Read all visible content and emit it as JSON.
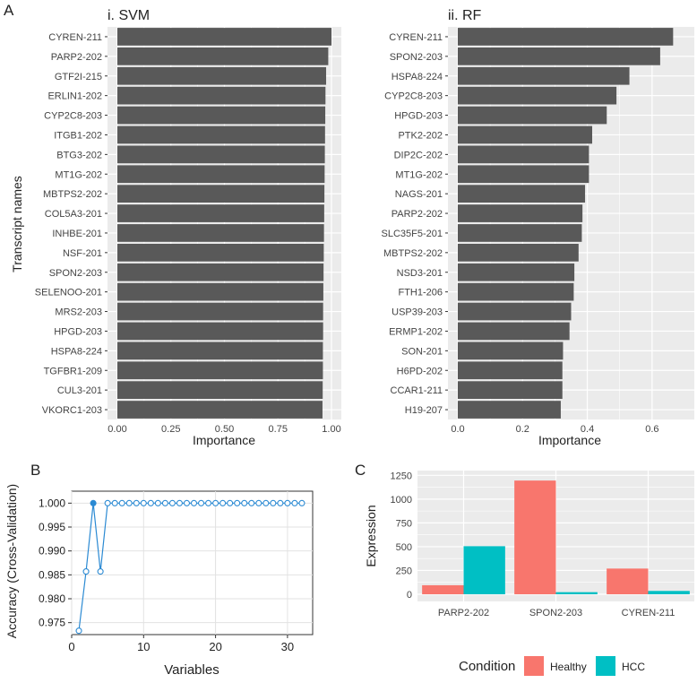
{
  "panel_labels": {
    "a": "A",
    "b": "B",
    "c": "C"
  },
  "colors": {
    "bar": "#595959",
    "panel_bg": "#ebebeb",
    "grid": "#ffffff",
    "point": "#2b8ad3",
    "healthy": "#f8766d",
    "hcc": "#00bfc4"
  },
  "chart_data": [
    {
      "id": "svm",
      "type": "bar",
      "orientation": "horizontal",
      "title": "i. SVM",
      "xlabel": "Importance",
      "ylabel": "Transcript names",
      "xlim": [
        0,
        1.0
      ],
      "xticks": [
        0.0,
        0.25,
        0.5,
        0.75,
        1.0
      ],
      "xtick_labels": [
        "0.00",
        "0.25",
        "0.50",
        "0.75",
        "1.00"
      ],
      "categories": [
        "CYREN-211",
        "PARP2-202",
        "GTF2I-215",
        "ERLIN1-202",
        "CYP2C8-203",
        "ITGB1-202",
        "BTG3-202",
        "MT1G-202",
        "MBTPS2-202",
        "COL5A3-201",
        "INHBE-201",
        "NSF-201",
        "SPON2-203",
        "SELENOO-201",
        "MRS2-203",
        "HPGD-203",
        "HSPA8-224",
        "TGFBR1-209",
        "CUL3-201",
        "VKORC1-203"
      ],
      "values": [
        1.0,
        0.985,
        0.975,
        0.972,
        0.971,
        0.97,
        0.969,
        0.968,
        0.967,
        0.966,
        0.965,
        0.964,
        0.963,
        0.962,
        0.961,
        0.961,
        0.96,
        0.96,
        0.959,
        0.958
      ]
    },
    {
      "id": "rf",
      "type": "bar",
      "orientation": "horizontal",
      "title": "ii. RF",
      "xlabel": "Importance",
      "xlim": [
        0,
        0.7
      ],
      "xticks": [
        0.0,
        0.2,
        0.4,
        0.6
      ],
      "xtick_labels": [
        "0.0",
        "0.2",
        "0.4",
        "0.6"
      ],
      "categories": [
        "CYREN-211",
        "SPON2-203",
        "HSPA8-224",
        "CYP2C8-203",
        "HPGD-203",
        "PTK2-202",
        "DIP2C-202",
        "MT1G-202",
        "NAGS-201",
        "PARP2-202",
        "SLC35F5-201",
        "MBTPS2-202",
        "NSD3-201",
        "FTH1-206",
        "USP39-203",
        "ERMP1-202",
        "SON-201",
        "H6PD-202",
        "CCAR1-211",
        "H19-207"
      ],
      "values": [
        0.665,
        0.625,
        0.53,
        0.49,
        0.46,
        0.415,
        0.405,
        0.405,
        0.393,
        0.385,
        0.383,
        0.373,
        0.36,
        0.358,
        0.35,
        0.345,
        0.325,
        0.323,
        0.323,
        0.318
      ]
    },
    {
      "id": "cv",
      "type": "line",
      "xlabel": "Variables",
      "ylabel": "Accuracy (Cross-Validation)",
      "xlim": [
        0,
        33.5
      ],
      "ylim": [
        0.9725,
        1.0025
      ],
      "xticks": [
        0,
        10,
        20,
        30
      ],
      "yticks": [
        0.975,
        0.98,
        0.985,
        0.99,
        0.995,
        1.0
      ],
      "ytick_labels": [
        "0.975",
        "0.980",
        "0.985",
        "0.990",
        "0.995",
        "1.000"
      ],
      "x": [
        1,
        2,
        3,
        4,
        5,
        6,
        7,
        8,
        9,
        10,
        11,
        12,
        13,
        14,
        15,
        16,
        17,
        18,
        19,
        20,
        21,
        22,
        23,
        24,
        25,
        26,
        27,
        28,
        29,
        30,
        31,
        32
      ],
      "y": [
        0.9733,
        0.9857,
        1.0,
        0.9857,
        1.0,
        1.0,
        1.0,
        1.0,
        1.0,
        1.0,
        1.0,
        1.0,
        1.0,
        1.0,
        1.0,
        1.0,
        1.0,
        1.0,
        1.0,
        1.0,
        1.0,
        1.0,
        1.0,
        1.0,
        1.0,
        1.0,
        1.0,
        1.0,
        1.0,
        1.0,
        1.0,
        1.0
      ],
      "selected_x": 3
    },
    {
      "id": "expr",
      "type": "bar",
      "ylabel": "Expression",
      "ylim": [
        0,
        1300
      ],
      "yticks": [
        0,
        250,
        500,
        750,
        1000,
        1250
      ],
      "categories": [
        "PARP2-202",
        "SPON2-203",
        "CYREN-211"
      ],
      "series": [
        {
          "name": "Healthy",
          "values": [
            95,
            1195,
            270
          ]
        },
        {
          "name": "HCC",
          "values": [
            505,
            22,
            35
          ]
        }
      ],
      "legend_title": "Condition",
      "legend_position": "bottom"
    }
  ]
}
